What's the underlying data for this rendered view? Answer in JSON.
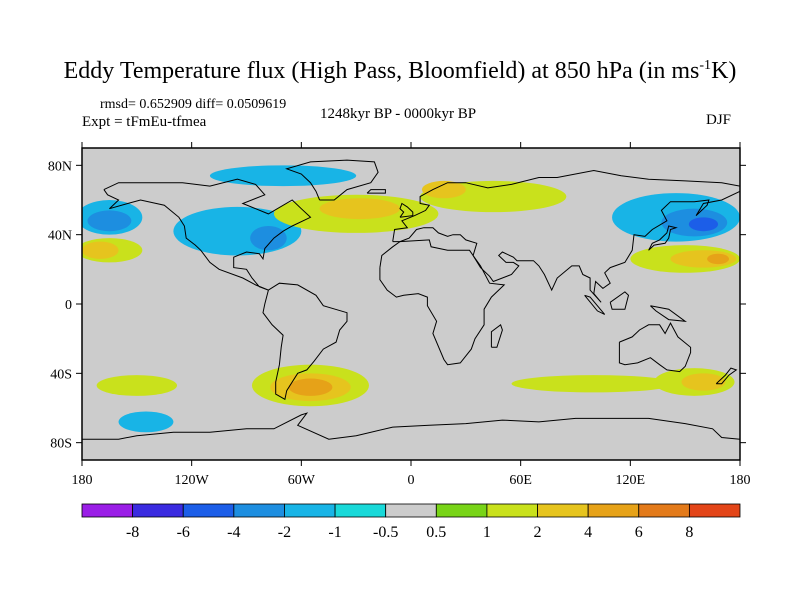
{
  "title": {
    "main": "Eddy Temperature flux (High Pass, Bloomfield) at 850 hPa (in ms",
    "sup": "-1",
    "tail": "K)"
  },
  "stats": {
    "rmsd_line": "rmsd= 0.652909 diff= 0.0509619",
    "expt_line": "Expt = tFmEu-tfmea",
    "period": "1248kyr BP - 0000kyr BP",
    "season": "DJF"
  },
  "map": {
    "lon_range": [
      -180,
      180
    ],
    "lat_range": [
      -90,
      90
    ],
    "lon_ticks": [
      {
        "value": -180,
        "label": "180"
      },
      {
        "value": -120,
        "label": "120W"
      },
      {
        "value": -60,
        "label": "60W"
      },
      {
        "value": 0,
        "label": "0"
      },
      {
        "value": 60,
        "label": "60E"
      },
      {
        "value": 120,
        "label": "120E"
      },
      {
        "value": 180,
        "label": "180"
      }
    ],
    "lat_ticks": [
      {
        "value": 80,
        "label": "80N"
      },
      {
        "value": 40,
        "label": "40N"
      },
      {
        "value": 0,
        "label": "0"
      },
      {
        "value": -40,
        "label": "40S"
      },
      {
        "value": -80,
        "label": "80S"
      }
    ],
    "background_color": "#cccccc",
    "coast_color": "#000000"
  },
  "colorbar": {
    "colors": [
      "#9a1ee6",
      "#3a2be0",
      "#1c5ee8",
      "#1d8ee0",
      "#18b4e6",
      "#19d9d9",
      "#cccccc",
      "#78d417",
      "#c9e11c",
      "#e6c41e",
      "#e6a218",
      "#e37a1a",
      "#e34518"
    ],
    "labels": [
      "-8",
      "-6",
      "-4",
      "-2",
      "-1",
      "-0.5",
      "0.5",
      "1",
      "2",
      "4",
      "6",
      "8"
    ]
  },
  "field_blobs": [
    {
      "level": "-1",
      "lon": -165,
      "lat": 50,
      "rx": 18,
      "ry": 10
    },
    {
      "level": "-2",
      "lon": -165,
      "lat": 48,
      "rx": 12,
      "ry": 6
    },
    {
      "level": "-1",
      "lon": -95,
      "lat": 42,
      "rx": 35,
      "ry": 14
    },
    {
      "level": "-2",
      "lon": -78,
      "lat": 38,
      "rx": 10,
      "ry": 7
    },
    {
      "level": "-1",
      "lon": -70,
      "lat": 74,
      "rx": 40,
      "ry": 6
    },
    {
      "level": "-1",
      "lon": 145,
      "lat": 50,
      "rx": 35,
      "ry": 14
    },
    {
      "level": "-2",
      "lon": 155,
      "lat": 47,
      "rx": 18,
      "ry": 8
    },
    {
      "level": "-4",
      "lon": 160,
      "lat": 46,
      "rx": 8,
      "ry": 4
    },
    {
      "level": "-1",
      "lon": -145,
      "lat": -68,
      "rx": 15,
      "ry": 6
    },
    {
      "level": "1",
      "lon": -165,
      "lat": 31,
      "rx": 18,
      "ry": 7
    },
    {
      "level": "2",
      "lon": -170,
      "lat": 31,
      "rx": 10,
      "ry": 5
    },
    {
      "level": "1",
      "lon": -30,
      "lat": 52,
      "rx": 45,
      "ry": 11
    },
    {
      "level": "2",
      "lon": -28,
      "lat": 55,
      "rx": 22,
      "ry": 6
    },
    {
      "level": "1",
      "lon": 45,
      "lat": 62,
      "rx": 40,
      "ry": 9
    },
    {
      "level": "2",
      "lon": 18,
      "lat": 66,
      "rx": 12,
      "ry": 5
    },
    {
      "level": "1",
      "lon": 150,
      "lat": 26,
      "rx": 30,
      "ry": 8
    },
    {
      "level": "2",
      "lon": 160,
      "lat": 26,
      "rx": 18,
      "ry": 5
    },
    {
      "level": "4",
      "lon": 168,
      "lat": 26,
      "rx": 6,
      "ry": 3
    },
    {
      "level": "1",
      "lon": -55,
      "lat": -47,
      "rx": 32,
      "ry": 12
    },
    {
      "level": "2",
      "lon": -55,
      "lat": -48,
      "rx": 22,
      "ry": 8
    },
    {
      "level": "4",
      "lon": -55,
      "lat": -48,
      "rx": 12,
      "ry": 5
    },
    {
      "level": "1",
      "lon": -150,
      "lat": -47,
      "rx": 22,
      "ry": 6
    },
    {
      "level": "1",
      "lon": 100,
      "lat": -46,
      "rx": 45,
      "ry": 5
    },
    {
      "level": "1",
      "lon": 155,
      "lat": -45,
      "rx": 22,
      "ry": 8
    },
    {
      "level": "2",
      "lon": 160,
      "lat": -45,
      "rx": 12,
      "ry": 5
    }
  ]
}
